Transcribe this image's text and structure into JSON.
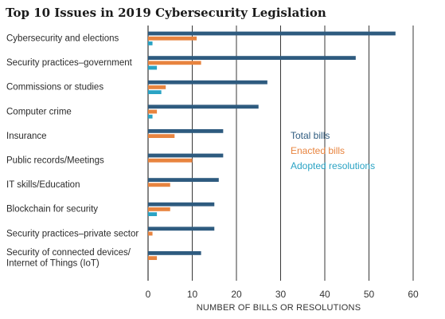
{
  "chart_data": {
    "type": "bar",
    "orientation": "horizontal",
    "title": "Top 10 Issues in 2019 Cybersecurity Legislation",
    "xlabel": "NUMBER OF BILLS OR RESOLUTIONS",
    "xlim": [
      0,
      60
    ],
    "xticks": [
      0,
      10,
      20,
      30,
      40,
      50,
      60
    ],
    "grid": "vertical",
    "legend_position": "right-middle",
    "categories": [
      [
        "Cybersecurity and elections"
      ],
      [
        "Security practices–government"
      ],
      [
        "Commissions or studies"
      ],
      [
        "Computer crime"
      ],
      [
        "Insurance"
      ],
      [
        "Public records/Meetings"
      ],
      [
        "IT skills/Education"
      ],
      [
        "Blockchain for security"
      ],
      [
        "Security practices–private sector"
      ],
      [
        "Security of connected devices/",
        "Internet of Things (IoT)"
      ]
    ],
    "series": [
      {
        "name": "Total bills",
        "color": "#2e5b7f",
        "values": [
          56,
          47,
          27,
          25,
          17,
          17,
          16,
          15,
          15,
          12
        ]
      },
      {
        "name": "Enacted bills",
        "color": "#e8843f",
        "values": [
          11,
          12,
          4,
          2,
          6,
          10,
          5,
          5,
          1,
          2
        ]
      },
      {
        "name": "Adopted resolutions",
        "color": "#2aa3c4",
        "values": [
          1,
          2,
          3,
          1,
          0,
          0,
          0,
          2,
          0,
          0
        ]
      }
    ]
  }
}
